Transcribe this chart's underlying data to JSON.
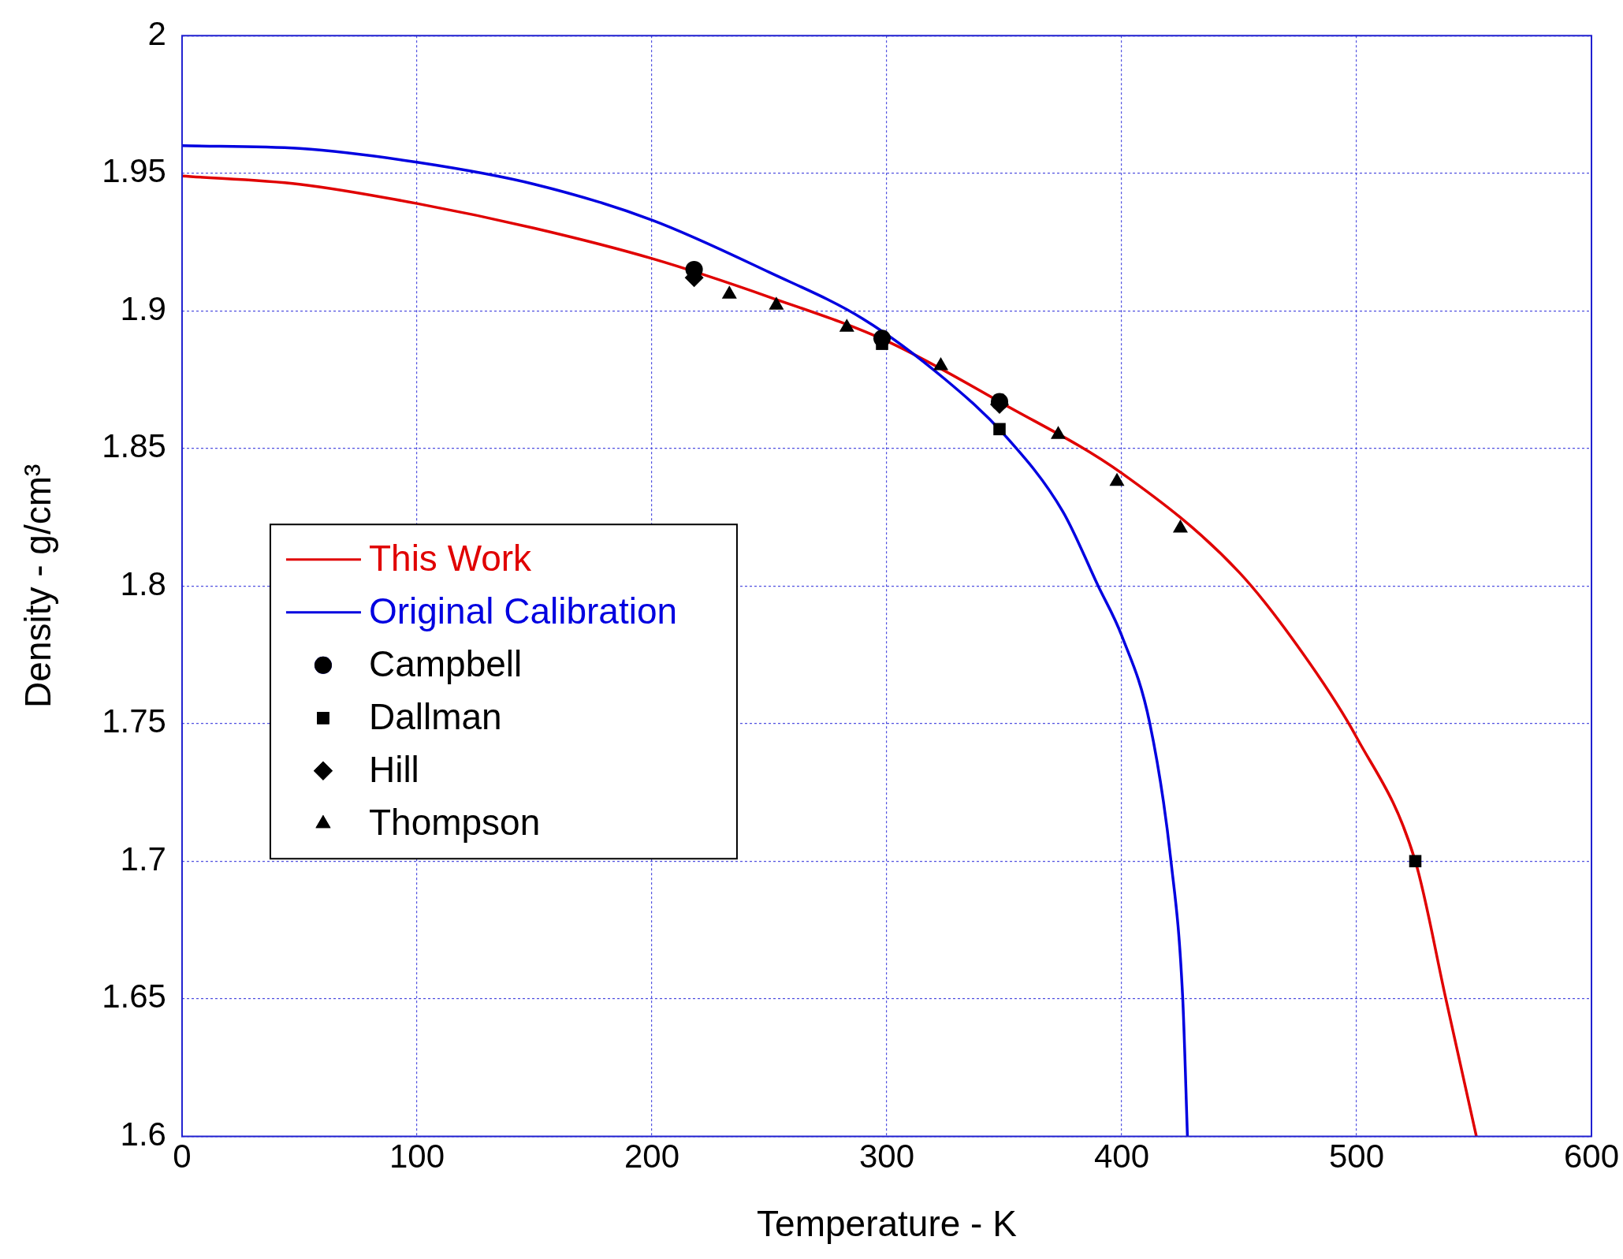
{
  "chart_data": {
    "type": "line",
    "xlabel": "Temperature - K",
    "ylabel": "Density - g/cm³",
    "xlim": [
      0,
      600
    ],
    "xticks": [
      0,
      100,
      200,
      300,
      400,
      500,
      600
    ],
    "ylim": [
      1.6,
      2
    ],
    "yticks": [
      1.6,
      1.65,
      1.7,
      1.75,
      1.8,
      1.85,
      1.9,
      1.95,
      2
    ],
    "grid": true,
    "legend": "center left",
    "series": [
      {
        "name": "This Work",
        "color": "#e00000",
        "marker": "none",
        "x": [
          0,
          50,
          100,
          150,
          200,
          250,
          300,
          350,
          400,
          450,
          480,
          500,
          525,
          538,
          551
        ],
        "values": [
          1.949,
          1.946,
          1.939,
          1.93,
          1.919,
          1.905,
          1.889,
          1.866,
          1.841,
          1.805,
          1.772,
          1.745,
          1.7,
          1.65,
          1.6
        ]
      },
      {
        "name": "Original Calibration",
        "color": "#0000e0",
        "marker": "none",
        "x": [
          0,
          50,
          100,
          150,
          200,
          250,
          290,
          325,
          350,
          375,
          390,
          400,
          412,
          421,
          426,
          428
        ],
        "values": [
          1.96,
          1.959,
          1.954,
          1.946,
          1.933,
          1.914,
          1.897,
          1.875,
          1.855,
          1.827,
          1.8,
          1.782,
          1.75,
          1.7,
          1.65,
          1.6
        ]
      },
      {
        "name": "Campbell",
        "type": "scatter",
        "color": "#000000",
        "marker": "circle",
        "x": [
          218,
          298,
          348
        ],
        "values": [
          1.915,
          1.89,
          1.867
        ]
      },
      {
        "name": "Dallman",
        "type": "scatter",
        "color": "#000000",
        "marker": "square",
        "x": [
          298,
          348,
          525
        ],
        "values": [
          1.888,
          1.857,
          1.7
        ]
      },
      {
        "name": "Hill",
        "type": "scatter",
        "color": "#000000",
        "marker": "diamond",
        "x": [
          218,
          348
        ],
        "values": [
          1.912,
          1.866
        ]
      },
      {
        "name": "Thompson",
        "type": "scatter",
        "color": "#000000",
        "marker": "triangle",
        "x": [
          233,
          253,
          283,
          323,
          373,
          398,
          425
        ],
        "values": [
          1.906,
          1.902,
          1.894,
          1.88,
          1.855,
          1.838,
          1.821
        ]
      }
    ]
  }
}
